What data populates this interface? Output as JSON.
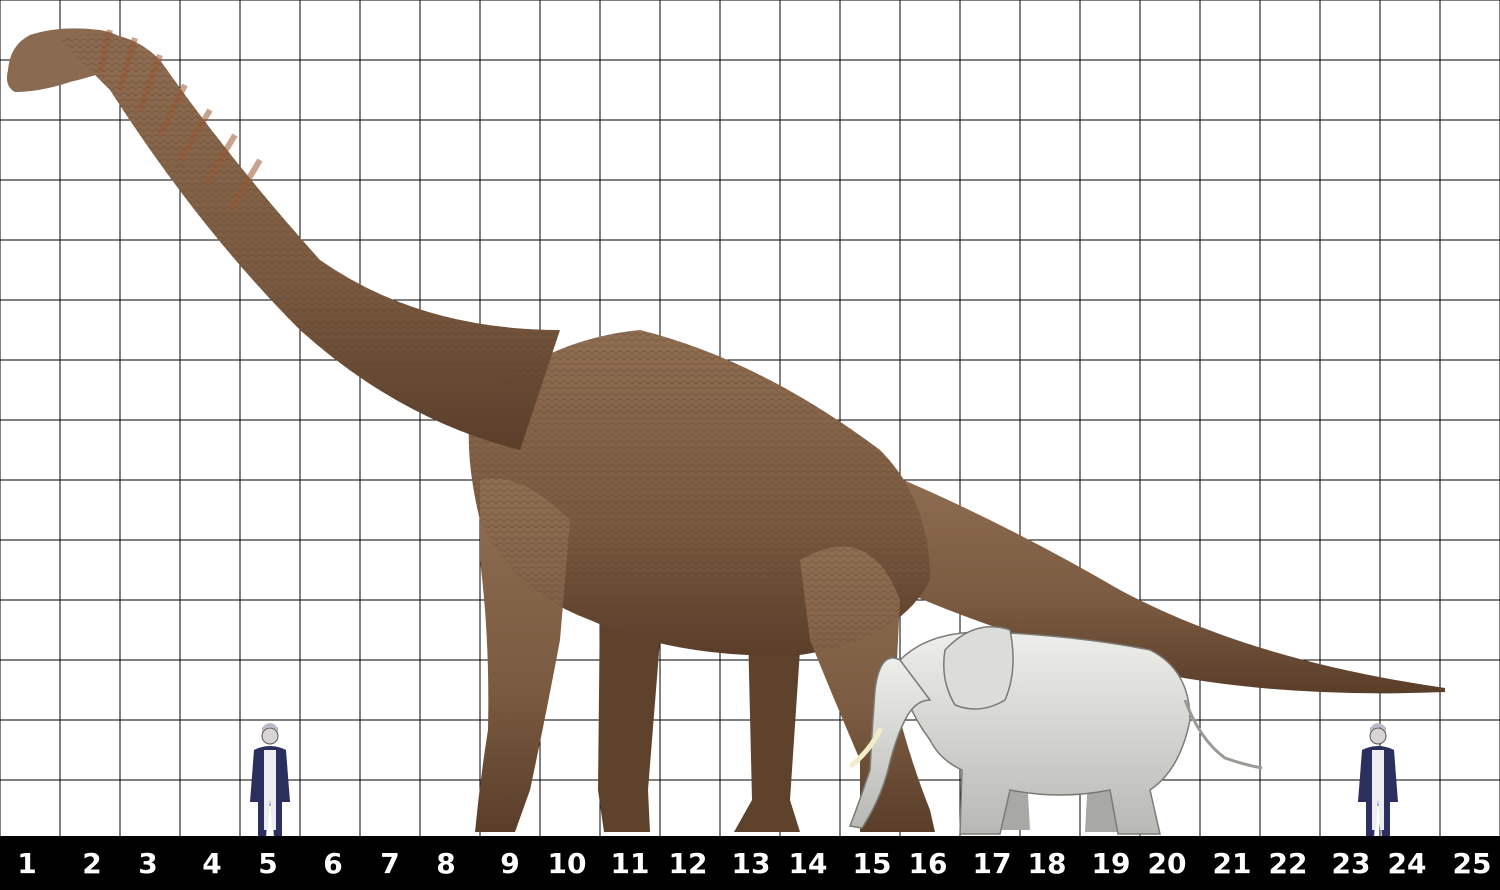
{
  "scale_labels": [
    "1",
    "2",
    "3",
    "4",
    "5",
    "6",
    "7",
    "8",
    "9",
    "10",
    "11",
    "12",
    "13",
    "14",
    "15",
    "16",
    "17",
    "18",
    "19",
    "20",
    "21",
    "22",
    "23",
    "24",
    "25"
  ],
  "figures": [
    {
      "name": "brachiosaurus",
      "color": "#7a5a40"
    },
    {
      "name": "elephant",
      "color": "#d8d8d4"
    },
    {
      "name": "human-left",
      "color": "#2a2f5e"
    },
    {
      "name": "human-right",
      "color": "#2a2f5e"
    }
  ],
  "colors": {
    "grid": "#000000",
    "background": "#ffffff",
    "bar": "#000000",
    "label": "#ffffff"
  }
}
